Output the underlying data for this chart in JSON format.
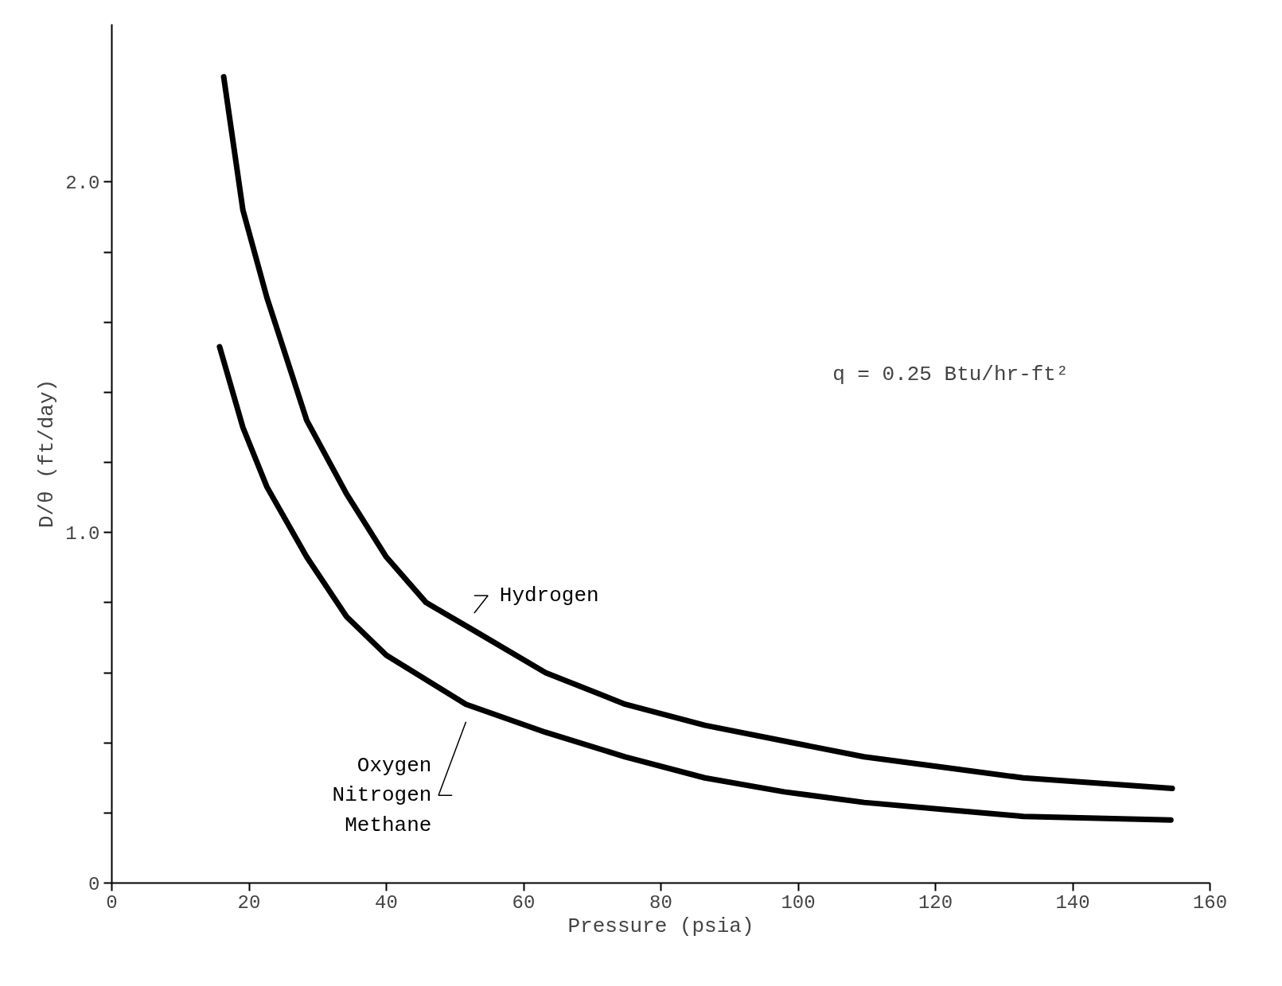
{
  "chart_data": {
    "type": "line",
    "xlabel": "Pressure (psia)",
    "ylabel": "D/θ (ft/day)",
    "xlim": [
      0,
      160
    ],
    "ylim": [
      0,
      2.45
    ],
    "xticks": [
      0,
      20,
      40,
      60,
      80,
      100,
      120,
      140,
      160
    ],
    "yticks": [
      {
        "value": 0,
        "label": "0"
      },
      {
        "value": 0.2,
        "label": null
      },
      {
        "value": 0.4,
        "label": null
      },
      {
        "value": 0.6,
        "label": null
      },
      {
        "value": 0.8,
        "label": null
      },
      {
        "value": 1.0,
        "label": "1.0"
      },
      {
        "value": 1.2,
        "label": null
      },
      {
        "value": 1.4,
        "label": null
      },
      {
        "value": 1.6,
        "label": null
      },
      {
        "value": 1.8,
        "label": null
      },
      {
        "value": 2.0,
        "label": "2.0"
      }
    ],
    "grid": false,
    "marker": "none",
    "line_style": "solid",
    "annotations": [
      "q = 0.25 Btu/hr-ft²"
    ],
    "series": [
      {
        "name": "Hydrogen",
        "color": "#000000",
        "x": [
          16.3,
          19.1,
          22.6,
          28.4,
          34.2,
          40.0,
          45.8,
          52.8,
          63.2,
          74.8,
          86.4,
          98.0,
          109.6,
          121.2,
          132.8,
          154.5
        ],
        "values": [
          2.3,
          1.92,
          1.67,
          1.32,
          1.11,
          0.93,
          0.8,
          0.72,
          0.6,
          0.51,
          0.45,
          0.405,
          0.36,
          0.33,
          0.3,
          0.27
        ]
      },
      {
        "name": "Oxygen\nNitrogen\nMethane",
        "color": "#000000",
        "x": [
          15.7,
          19.1,
          22.6,
          28.4,
          34.2,
          40.0,
          51.6,
          63.2,
          74.8,
          86.4,
          98.0,
          109.6,
          121.2,
          132.8,
          154.3
        ],
        "values": [
          1.53,
          1.3,
          1.13,
          0.93,
          0.76,
          0.65,
          0.51,
          0.43,
          0.36,
          0.3,
          0.26,
          0.23,
          0.21,
          0.19,
          0.18
        ]
      }
    ]
  }
}
